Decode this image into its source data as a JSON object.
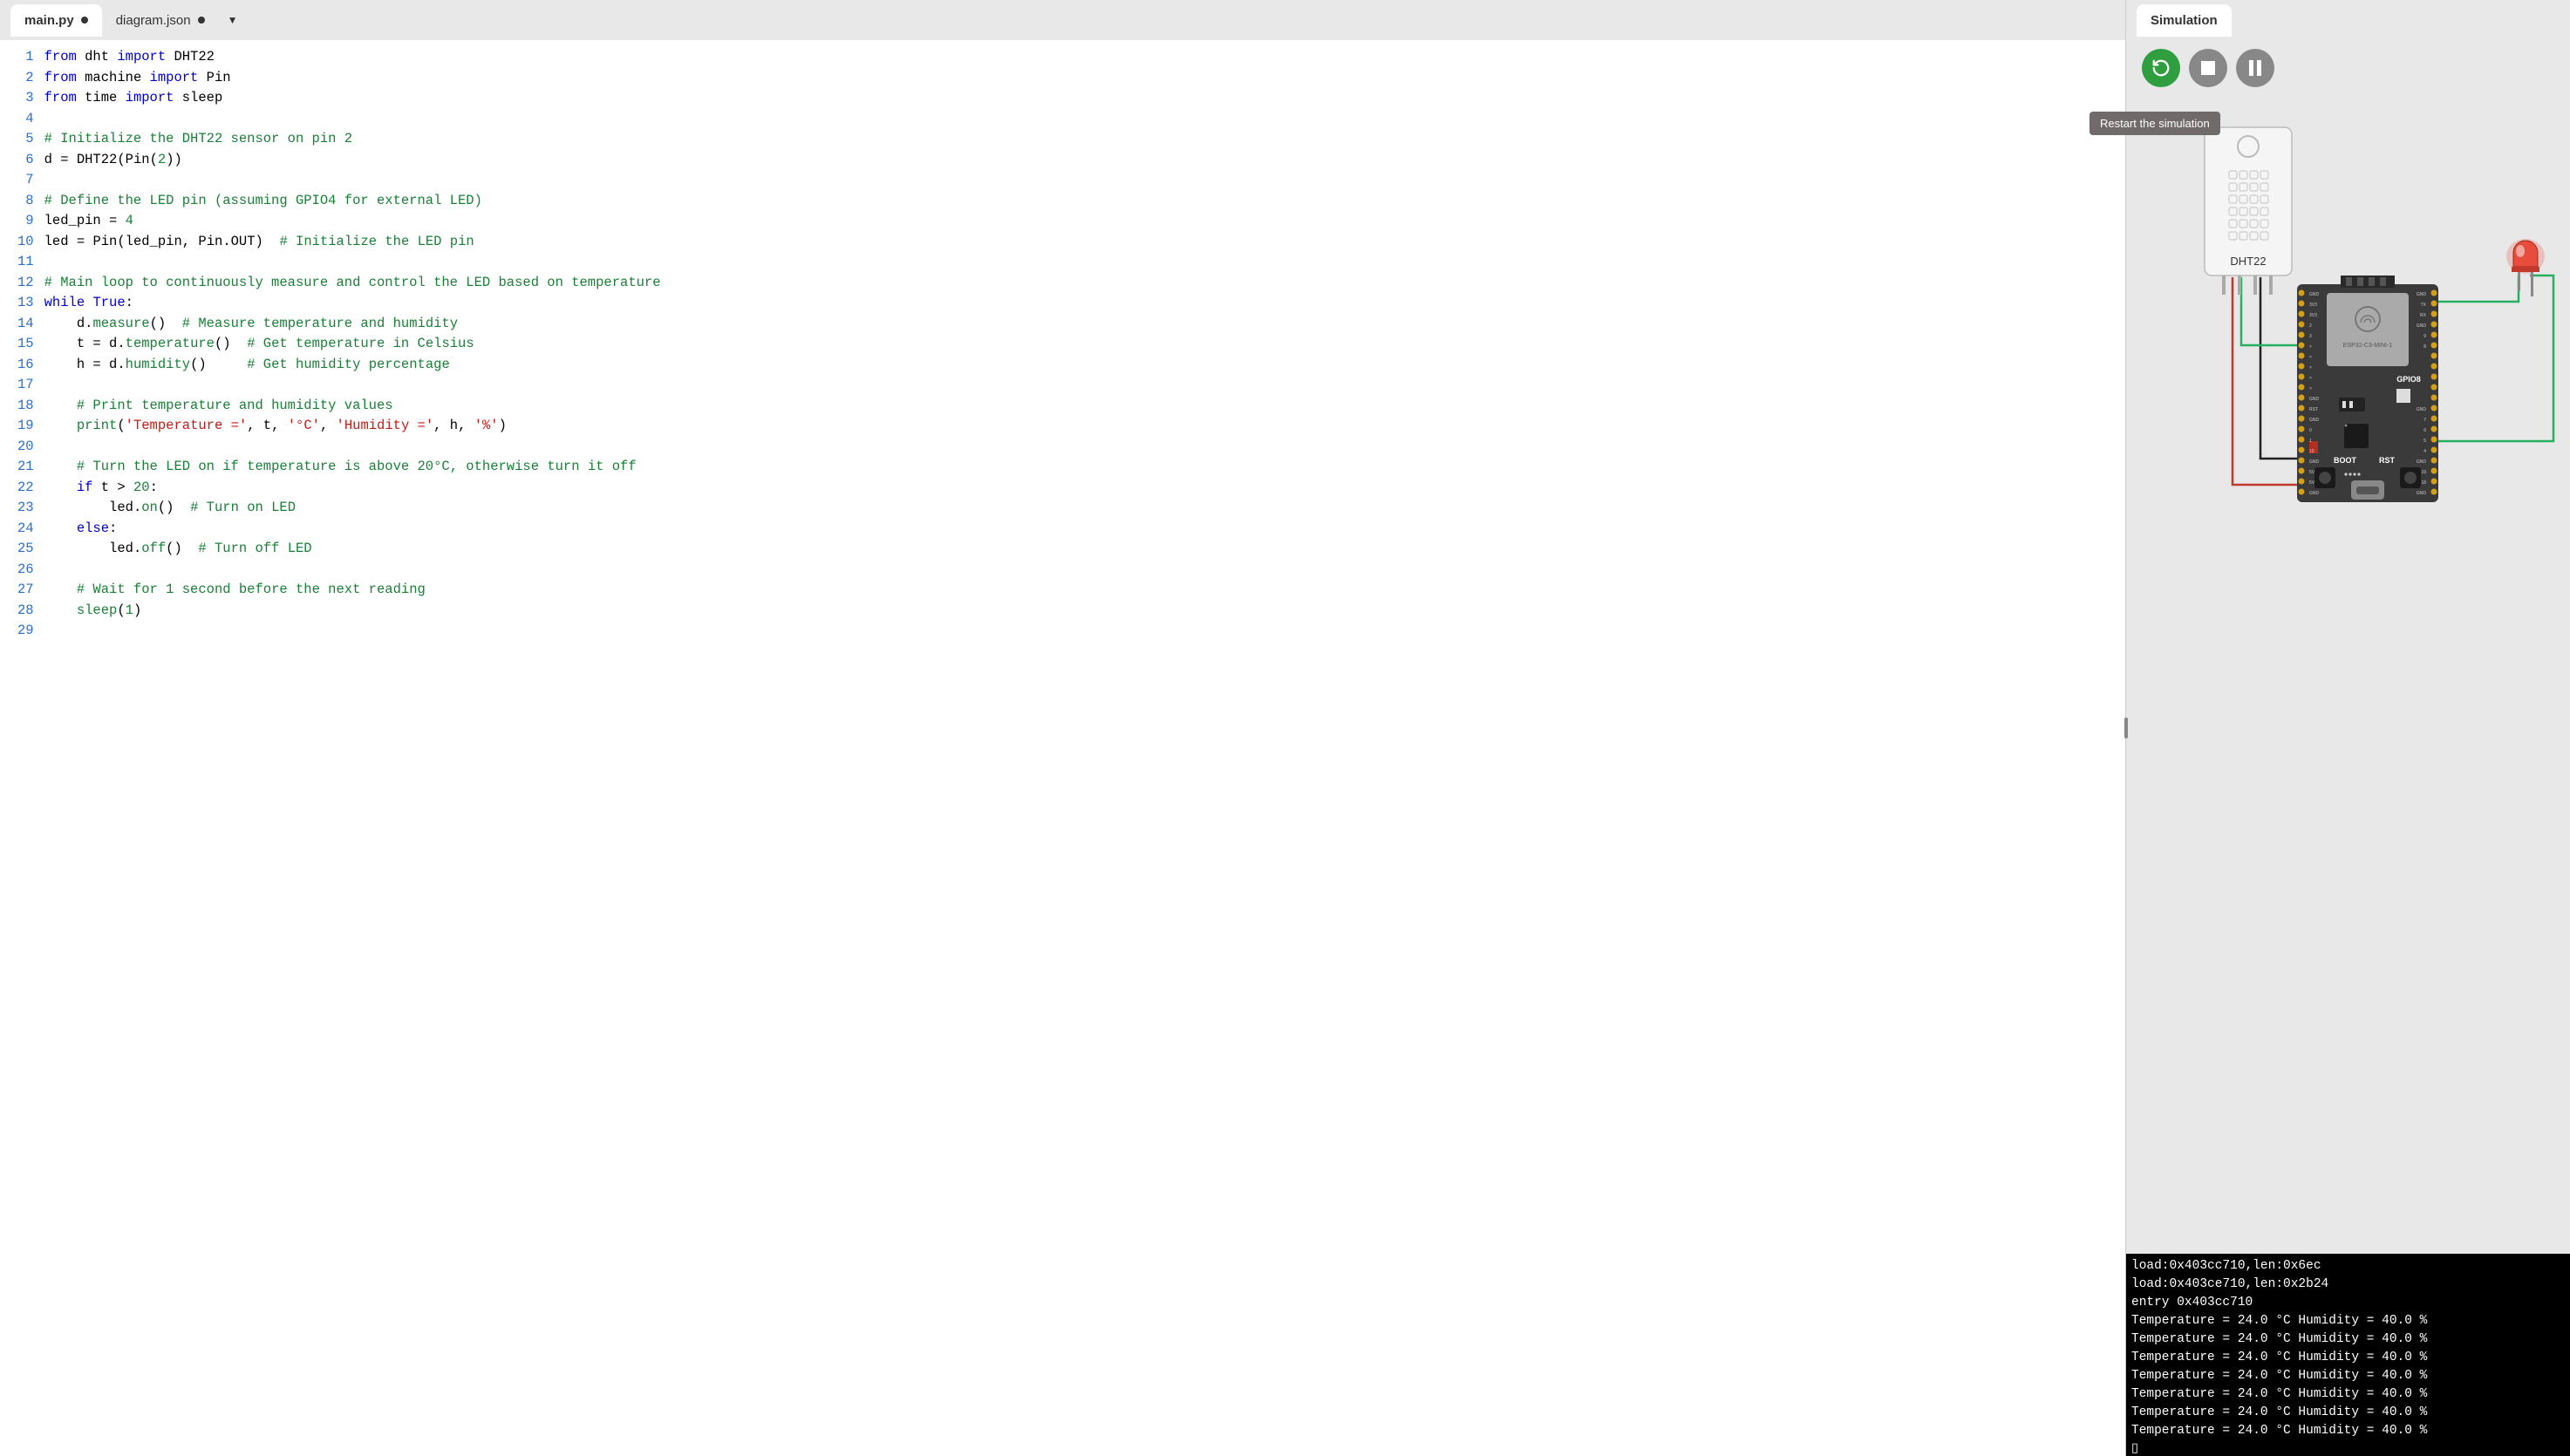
{
  "tabs": [
    {
      "label": "main.py",
      "modified": true,
      "active": true
    },
    {
      "label": "diagram.json",
      "modified": true,
      "active": false
    }
  ],
  "simulation": {
    "tab_label": "Simulation",
    "tooltip": "Restart the simulation"
  },
  "code": {
    "total_lines": 29,
    "lines": [
      [
        [
          "kw",
          "from"
        ],
        [
          "id",
          " dht "
        ],
        [
          "kw",
          "import"
        ],
        [
          "id",
          " DHT22"
        ]
      ],
      [
        [
          "kw",
          "from"
        ],
        [
          "id",
          " machine "
        ],
        [
          "kw",
          "import"
        ],
        [
          "id",
          " Pin"
        ]
      ],
      [
        [
          "kw",
          "from"
        ],
        [
          "id",
          " time "
        ],
        [
          "kw",
          "import"
        ],
        [
          "id",
          " sleep"
        ]
      ],
      [],
      [
        [
          "cm",
          "# Initialize the DHT22 sensor on pin 2"
        ]
      ],
      [
        [
          "id",
          "d "
        ],
        [
          "op",
          "="
        ],
        [
          "id",
          " DHT22"
        ],
        [
          "op",
          "("
        ],
        [
          "id",
          "Pin"
        ],
        [
          "op",
          "("
        ],
        [
          "num",
          "2"
        ],
        [
          "op",
          "))"
        ]
      ],
      [],
      [
        [
          "cm",
          "# Define the LED pin (assuming GPIO4 for external LED)"
        ]
      ],
      [
        [
          "id",
          "led_pin "
        ],
        [
          "op",
          "="
        ],
        [
          "id",
          " "
        ],
        [
          "num",
          "4"
        ]
      ],
      [
        [
          "id",
          "led "
        ],
        [
          "op",
          "="
        ],
        [
          "id",
          " Pin"
        ],
        [
          "op",
          "("
        ],
        [
          "id",
          "led_pin"
        ],
        [
          "op",
          ", "
        ],
        [
          "id",
          "Pin"
        ],
        [
          "op",
          "."
        ],
        [
          "id",
          "OUT"
        ],
        [
          "op",
          ")  "
        ],
        [
          "cm",
          "# Initialize the LED pin"
        ]
      ],
      [],
      [
        [
          "cm",
          "# Main loop to continuously measure and control the LED based on temperature"
        ]
      ],
      [
        [
          "kw",
          "while"
        ],
        [
          "id",
          " "
        ],
        [
          "kw",
          "True"
        ],
        [
          "op",
          ":"
        ]
      ],
      [
        [
          "id",
          "    d"
        ],
        [
          "op",
          "."
        ],
        [
          "fn",
          "measure"
        ],
        [
          "op",
          "()  "
        ],
        [
          "cm",
          "# Measure temperature and humidity"
        ]
      ],
      [
        [
          "id",
          "    t "
        ],
        [
          "op",
          "="
        ],
        [
          "id",
          " d"
        ],
        [
          "op",
          "."
        ],
        [
          "fn",
          "temperature"
        ],
        [
          "op",
          "()  "
        ],
        [
          "cm",
          "# Get temperature in Celsius"
        ]
      ],
      [
        [
          "id",
          "    h "
        ],
        [
          "op",
          "="
        ],
        [
          "id",
          " d"
        ],
        [
          "op",
          "."
        ],
        [
          "fn",
          "humidity"
        ],
        [
          "op",
          "()     "
        ],
        [
          "cm",
          "# Get humidity percentage"
        ]
      ],
      [],
      [
        [
          "id",
          "    "
        ],
        [
          "cm",
          "# Print temperature and humidity values"
        ]
      ],
      [
        [
          "id",
          "    "
        ],
        [
          "fn",
          "print"
        ],
        [
          "op",
          "("
        ],
        [
          "str",
          "'Temperature ='"
        ],
        [
          "op",
          ", "
        ],
        [
          "id",
          "t"
        ],
        [
          "op",
          ", "
        ],
        [
          "str",
          "'°C'"
        ],
        [
          "op",
          ", "
        ],
        [
          "str",
          "'Humidity ='"
        ],
        [
          "op",
          ", "
        ],
        [
          "id",
          "h"
        ],
        [
          "op",
          ", "
        ],
        [
          "str",
          "'%'"
        ],
        [
          "op",
          ")"
        ]
      ],
      [],
      [
        [
          "id",
          "    "
        ],
        [
          "cm",
          "# Turn the LED on if temperature is above 20°C, otherwise turn it off"
        ]
      ],
      [
        [
          "id",
          "    "
        ],
        [
          "kw",
          "if"
        ],
        [
          "id",
          " t "
        ],
        [
          "op",
          ">"
        ],
        [
          "id",
          " "
        ],
        [
          "num",
          "20"
        ],
        [
          "op",
          ":"
        ]
      ],
      [
        [
          "id",
          "        led"
        ],
        [
          "op",
          "."
        ],
        [
          "fn",
          "on"
        ],
        [
          "op",
          "()  "
        ],
        [
          "cm",
          "# Turn on LED"
        ]
      ],
      [
        [
          "id",
          "    "
        ],
        [
          "kw",
          "else"
        ],
        [
          "op",
          ":"
        ]
      ],
      [
        [
          "id",
          "        led"
        ],
        [
          "op",
          "."
        ],
        [
          "fn",
          "off"
        ],
        [
          "op",
          "()  "
        ],
        [
          "cm",
          "# Turn off LED"
        ]
      ],
      [],
      [
        [
          "id",
          "    "
        ],
        [
          "cm",
          "# Wait for 1 second before the next reading"
        ]
      ],
      [
        [
          "id",
          "    "
        ],
        [
          "fn",
          "sleep"
        ],
        [
          "op",
          "("
        ],
        [
          "num",
          "1"
        ],
        [
          "op",
          ")"
        ]
      ],
      []
    ]
  },
  "console_lines": [
    "load:0x403cc710,len:0x6ec",
    "load:0x403ce710,len:0x2b24",
    "entry 0x403cc710",
    "Temperature = 24.0 °C Humidity = 40.0 %",
    "Temperature = 24.0 °C Humidity = 40.0 %",
    "Temperature = 24.0 °C Humidity = 40.0 %",
    "Temperature = 24.0 °C Humidity = 40.0 %",
    "Temperature = 24.0 °C Humidity = 40.0 %",
    "Temperature = 24.0 °C Humidity = 40.0 %",
    "Temperature = 24.0 °C Humidity = 40.0 %",
    "▯"
  ],
  "board": {
    "sensor_label": "DHT22",
    "chip_label": "ESP32-C3-MINI-1",
    "gpio_label": "GPIO8",
    "boot_label": "BOOT",
    "rst_label": "RST",
    "left_pin_labels_top": [
      "GND",
      "3V3",
      "3V3",
      "2",
      "3",
      "×",
      "×",
      "×",
      "×",
      "×"
    ],
    "left_pin_labels_bot": [
      "GND",
      "RST",
      "GND",
      "0",
      "1",
      "10",
      "GND",
      "5V",
      "5V",
      "GND"
    ],
    "right_pin_labels_top": [
      "GND",
      "TX",
      "RX",
      "GND",
      "9",
      "8"
    ],
    "right_pin_labels_bot": [
      "GND",
      "7",
      "6",
      "5",
      "4",
      "GND",
      "19",
      "18",
      "GND",
      "GND"
    ]
  },
  "colors": {
    "bg": "#e8e8e8",
    "tab_active_bg": "#ffffff",
    "editor_bg": "#ffffff",
    "gutter_text": "#2a6fc9",
    "keyword": "#0000cc",
    "function": "#1a7f37",
    "comment": "#1a7f37",
    "string": "#c41a16",
    "number": "#1a7f37",
    "console_bg": "#000000",
    "console_fg": "#ffffff",
    "restart_btn": "#2e9e3f",
    "grey_btn": "#888888",
    "tooltip_bg": "#706a6a",
    "wire_red": "#c0392b",
    "wire_green": "#27ae60",
    "wire_black": "#222222",
    "led_red": "#e74c3c",
    "board_bg": "#3a3a3a",
    "board_pin": "#d4a017",
    "sensor_bg": "#f5f5f5"
  }
}
